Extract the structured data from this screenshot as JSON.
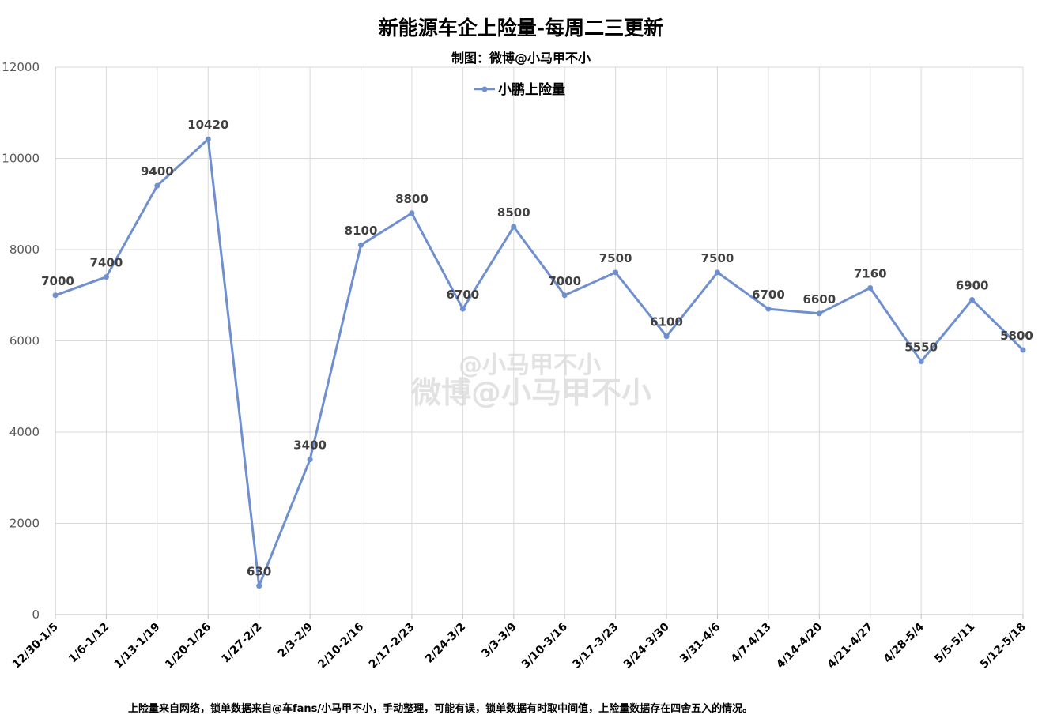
{
  "chart_data": {
    "type": "line",
    "title": "新能源车企上险量-每周二三更新",
    "subtitle": "制图：微博@小马甲不小",
    "categories": [
      "12/30-1/5",
      "1/6-1/12",
      "1/13-1/19",
      "1/20-1/26",
      "1/27-2/2",
      "2/3-2/9",
      "2/10-2/16",
      "2/17-2/23",
      "2/24-3/2",
      "3/3-3/9",
      "3/10-3/16",
      "3/17-3/23",
      "3/24-3/30",
      "3/31-4/6",
      "4/7-4/13",
      "4/14-4/20",
      "4/21-4/27",
      "4/28-5/4",
      "5/5-5/11",
      "5/12-5/18"
    ],
    "series": [
      {
        "name": "小鹏上险量",
        "values": [
          7000,
          7400,
          9400,
          10420,
          630,
          3400,
          8100,
          8800,
          6700,
          8500,
          7000,
          7500,
          6100,
          7500,
          6700,
          6600,
          7160,
          5550,
          6900,
          5800
        ]
      }
    ],
    "ylim": [
      0,
      12000
    ],
    "yticks": [
      0,
      2000,
      4000,
      6000,
      8000,
      10000,
      12000
    ],
    "grid": true,
    "legend_position": "top-center",
    "line_color": "#6f8fcf",
    "footnote": "上险量来自网络，锁单数据来自@车fans/小马甲不小，手动整理，可能有误，锁单数据有时取中间值，上险量数据存在四舍五入的情况。",
    "watermark": [
      "@小马甲不小",
      "微博@小马甲不小"
    ]
  }
}
